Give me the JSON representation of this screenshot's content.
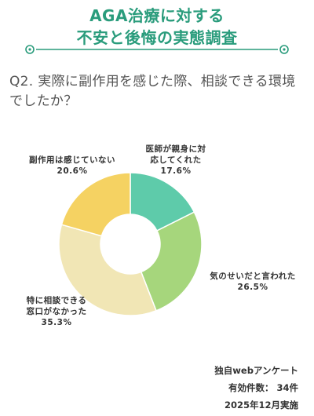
{
  "title": {
    "line1": "AGA治療に対する",
    "line2": "不安と後悔の実態調査"
  },
  "question": {
    "line1": "Q2. 実際に副作用を感じた際、相談できる環境",
    "line2": "でしたか？"
  },
  "colors": {
    "accent": "#2a9c7c",
    "text": "#333333"
  },
  "chart_data": {
    "type": "pie",
    "donut": true,
    "categories": [
      "医師が親身に対応してくれた",
      "気のせいだと言われた",
      "特に相談できる窓口がなかった",
      "副作用は感じていない"
    ],
    "values": [
      17.6,
      26.5,
      35.3,
      20.6
    ],
    "value_labels": [
      "17.6%",
      "26.5%",
      "35.3%",
      "20.6%"
    ],
    "label_lines": [
      [
        "医師が親身に対",
        "応してくれた"
      ],
      [
        "気のせいだと言われた"
      ],
      [
        "特に相談できる",
        "窓口がなかった"
      ],
      [
        "副作用は感じていない"
      ]
    ],
    "colors": [
      "#5ecbaa",
      "#a6d67c",
      "#f1e6b5",
      "#f5d262"
    ],
    "start_angle_deg": 0,
    "direction": "clockwise",
    "legend": "none"
  },
  "footer": {
    "line1": "独自webアンケート",
    "line2": "有効件数： 34件",
    "line3": "2025年12月実施"
  }
}
